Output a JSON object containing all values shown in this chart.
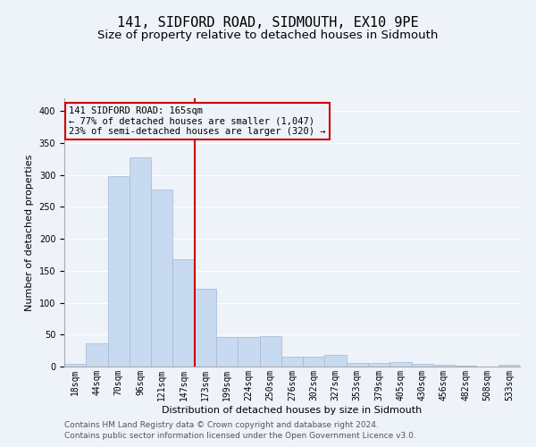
{
  "title": "141, SIDFORD ROAD, SIDMOUTH, EX10 9PE",
  "subtitle": "Size of property relative to detached houses in Sidmouth",
  "xlabel": "Distribution of detached houses by size in Sidmouth",
  "ylabel": "Number of detached properties",
  "bin_labels": [
    "18sqm",
    "44sqm",
    "70sqm",
    "96sqm",
    "121sqm",
    "147sqm",
    "173sqm",
    "199sqm",
    "224sqm",
    "250sqm",
    "276sqm",
    "302sqm",
    "327sqm",
    "353sqm",
    "379sqm",
    "405sqm",
    "430sqm",
    "456sqm",
    "482sqm",
    "508sqm",
    "533sqm"
  ],
  "bar_heights": [
    4,
    37,
    298,
    327,
    277,
    168,
    122,
    46,
    46,
    48,
    15,
    16,
    18,
    6,
    6,
    7,
    4,
    3,
    1,
    0,
    3
  ],
  "bar_color": "#c8daf0",
  "bar_edgecolor": "#a0b8d8",
  "vline_x": 5.5,
  "vline_color": "#cc0000",
  "annotation_text": "141 SIDFORD ROAD: 165sqm\n← 77% of detached houses are smaller (1,047)\n23% of semi-detached houses are larger (320) →",
  "annotation_box_color": "#cc0000",
  "ylim": [
    0,
    420
  ],
  "yticks": [
    0,
    50,
    100,
    150,
    200,
    250,
    300,
    350,
    400
  ],
  "footer_line1": "Contains HM Land Registry data © Crown copyright and database right 2024.",
  "footer_line2": "Contains public sector information licensed under the Open Government Licence v3.0.",
  "bg_color": "#eef2f9",
  "grid_color": "#ffffff",
  "title_fontsize": 11,
  "subtitle_fontsize": 9.5,
  "axis_label_fontsize": 8,
  "tick_fontsize": 7,
  "footer_fontsize": 6.5,
  "annotation_fontsize": 7.5
}
